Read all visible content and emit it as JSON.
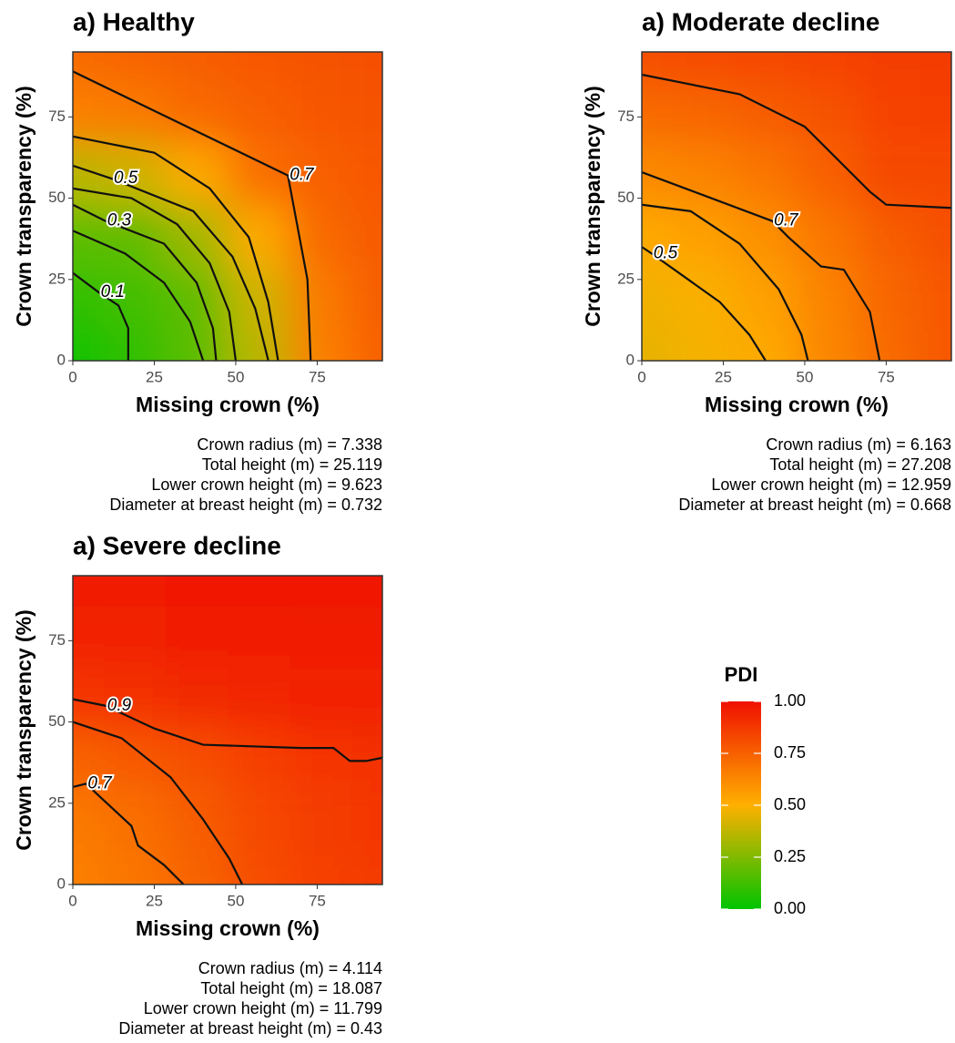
{
  "chart_data": [
    {
      "type": "contour",
      "title": "a) Healthy",
      "xlabel": "Missing crown (%)",
      "ylabel": "Crown transparency (%)",
      "xlim": [
        0,
        95
      ],
      "ylim": [
        0,
        95
      ],
      "xticks": [
        0,
        25,
        50,
        75
      ],
      "yticks": [
        0,
        25,
        50,
        75
      ],
      "grid_x": [
        0,
        19,
        38,
        57,
        76,
        95
      ],
      "grid_y": [
        0,
        19,
        38,
        57,
        76,
        95
      ],
      "z": [
        [
          0.02,
          0.09,
          0.18,
          0.36,
          0.65,
          0.75
        ],
        [
          0.09,
          0.13,
          0.19,
          0.4,
          0.67,
          0.76
        ],
        [
          0.18,
          0.19,
          0.31,
          0.52,
          0.72,
          0.77
        ],
        [
          0.36,
          0.4,
          0.52,
          0.7,
          0.75,
          0.78
        ],
        [
          0.65,
          0.67,
          0.72,
          0.75,
          0.78,
          0.79
        ],
        [
          0.72,
          0.74,
          0.76,
          0.78,
          0.79,
          0.8
        ]
      ],
      "contours": [
        {
          "level": 0.1,
          "labeled": true,
          "x": [
            0,
            8,
            14,
            17,
            17
          ],
          "y": [
            27,
            21,
            17,
            10,
            0
          ]
        },
        {
          "level": 0.2,
          "labeled": false,
          "x": [
            0,
            16,
            28,
            36,
            40
          ],
          "y": [
            40,
            33,
            24,
            12,
            0
          ]
        },
        {
          "level": 0.3,
          "labeled": true,
          "x": [
            0,
            10,
            28,
            38,
            43,
            44
          ],
          "y": [
            48,
            43,
            36,
            24,
            10,
            0
          ]
        },
        {
          "level": 0.4,
          "labeled": false,
          "x": [
            0,
            18,
            32,
            42,
            48,
            50
          ],
          "y": [
            53,
            50,
            42,
            30,
            15,
            0
          ]
        },
        {
          "level": 0.5,
          "labeled": true,
          "x": [
            0,
            12,
            37,
            49,
            56,
            60
          ],
          "y": [
            60,
            56,
            46,
            32,
            16,
            0
          ]
        },
        {
          "level": 0.6,
          "labeled": false,
          "x": [
            0,
            25,
            42,
            54,
            60,
            63
          ],
          "y": [
            69,
            64,
            53,
            38,
            18,
            0
          ]
        },
        {
          "level": 0.7,
          "labeled": true,
          "x": [
            0,
            66,
            72,
            73
          ],
          "y": [
            89,
            57,
            25,
            0
          ]
        }
      ],
      "notes": [
        "Crown radius (m) = 7.338",
        "Total height (m) = 25.119",
        "Lower crown height (m) = 9.623",
        "Diameter at breast height (m) = 0.732"
      ]
    },
    {
      "type": "contour",
      "title": "a) Moderate decline",
      "xlabel": "Missing crown (%)",
      "ylabel": "Crown transparency (%)",
      "xlim": [
        0,
        95
      ],
      "ylim": [
        0,
        95
      ],
      "xticks": [
        0,
        25,
        50,
        75
      ],
      "yticks": [
        0,
        25,
        50,
        75
      ],
      "grid_x": [
        0,
        19,
        38,
        57,
        76,
        95
      ],
      "grid_y": [
        0,
        19,
        38,
        57,
        76,
        95
      ],
      "z": [
        [
          0.45,
          0.48,
          0.52,
          0.63,
          0.72,
          0.78
        ],
        [
          0.47,
          0.49,
          0.55,
          0.64,
          0.73,
          0.78
        ],
        [
          0.52,
          0.55,
          0.6,
          0.68,
          0.76,
          0.8
        ],
        [
          0.62,
          0.64,
          0.68,
          0.75,
          0.82,
          0.82
        ],
        [
          0.72,
          0.73,
          0.76,
          0.79,
          0.84,
          0.85
        ],
        [
          0.81,
          0.82,
          0.83,
          0.84,
          0.86,
          0.87
        ]
      ],
      "contours": [
        {
          "level": 0.5,
          "labeled": true,
          "x": [
            0,
            3,
            24,
            33,
            38
          ],
          "y": [
            35,
            33,
            18,
            8,
            0
          ]
        },
        {
          "level": 0.6,
          "labeled": false,
          "x": [
            0,
            15,
            30,
            42,
            49,
            51
          ],
          "y": [
            48,
            46,
            36,
            22,
            8,
            0
          ]
        },
        {
          "level": 0.7,
          "labeled": true,
          "x": [
            0,
            40,
            45,
            55,
            62,
            70,
            72,
            73
          ],
          "y": [
            58,
            43,
            38,
            29,
            28,
            15,
            5,
            0
          ]
        },
        {
          "level": 0.8,
          "labeled": false,
          "x": [
            0,
            30,
            50,
            62,
            70,
            75,
            95
          ],
          "y": [
            88,
            82,
            72,
            60,
            52,
            48,
            47
          ]
        }
      ],
      "notes": [
        "Crown radius (m) = 6.163",
        "Total height (m) = 27.208",
        "Lower crown height (m) = 12.959",
        "Diameter at breast height (m) = 0.668"
      ]
    },
    {
      "type": "contour",
      "title": "a) Severe decline",
      "xlabel": "Missing crown (%)",
      "ylabel": "Crown transparency (%)",
      "xlim": [
        0,
        95
      ],
      "ylim": [
        0,
        95
      ],
      "xticks": [
        0,
        25,
        50,
        75
      ],
      "yticks": [
        0,
        25,
        50,
        75
      ],
      "grid_x": [
        0,
        19,
        38,
        57,
        76,
        95
      ],
      "grid_y": [
        0,
        19,
        38,
        57,
        76,
        95
      ],
      "z": [
        [
          0.65,
          0.68,
          0.74,
          0.81,
          0.85,
          0.87
        ],
        [
          0.67,
          0.7,
          0.76,
          0.82,
          0.86,
          0.88
        ],
        [
          0.74,
          0.77,
          0.8,
          0.85,
          0.88,
          0.89
        ],
        [
          0.88,
          0.9,
          0.92,
          0.93,
          0.94,
          0.94
        ],
        [
          0.94,
          0.95,
          0.96,
          0.96,
          0.97,
          0.97
        ],
        [
          0.96,
          0.97,
          0.98,
          0.98,
          0.99,
          0.99
        ]
      ],
      "contours": [
        {
          "level": 0.7,
          "labeled": true,
          "x": [
            0,
            4,
            18,
            20,
            28,
            34
          ],
          "y": [
            30,
            31,
            18,
            12,
            6,
            0
          ]
        },
        {
          "level": 0.8,
          "labeled": false,
          "x": [
            0,
            15,
            30,
            40,
            48,
            52
          ],
          "y": [
            50,
            45,
            33,
            20,
            8,
            0
          ]
        },
        {
          "level": 0.9,
          "labeled": true,
          "x": [
            0,
            10,
            25,
            40,
            70,
            80,
            85,
            90,
            95
          ],
          "y": [
            57,
            55,
            48,
            43,
            42,
            42,
            38,
            38,
            39
          ]
        }
      ],
      "notes": [
        "Crown radius (m) = 4.114",
        "Total height (m) = 18.087",
        "Lower crown height (m) = 11.799",
        "Diameter at breast height (m) = 0.43"
      ]
    }
  ],
  "legend": {
    "title": "PDI",
    "lim": [
      0,
      1
    ],
    "ticks": [
      {
        "value": 0,
        "label": "0.00"
      },
      {
        "value": 0.25,
        "label": "0.25"
      },
      {
        "value": 0.5,
        "label": "0.50"
      },
      {
        "value": 0.75,
        "label": "0.75"
      },
      {
        "value": 1,
        "label": "1.00"
      }
    ],
    "colorscale": [
      [
        0,
        "#00c400"
      ],
      [
        0.5,
        "#ffb000"
      ],
      [
        1,
        "#f01000"
      ]
    ]
  }
}
